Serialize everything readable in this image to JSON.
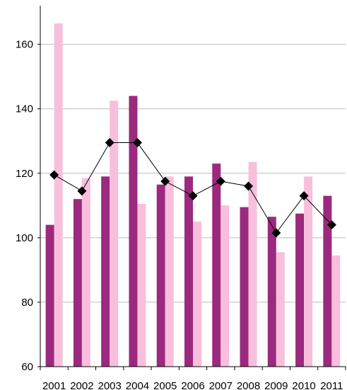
{
  "chart_data": {
    "type": "bar",
    "categories": [
      "2001",
      "2002",
      "2003",
      "2004",
      "2005",
      "2006",
      "2007",
      "2008",
      "2009",
      "2010",
      "2011"
    ],
    "series": [
      {
        "type": "bar",
        "color": "#9b2a7e",
        "values": [
          104,
          112,
          119,
          144,
          116.5,
          119,
          123,
          109.5,
          106.5,
          107.5,
          113
        ]
      },
      {
        "type": "bar",
        "color": "#f7bfdb",
        "values": [
          166.5,
          118.5,
          142.5,
          110.5,
          119,
          105,
          110,
          123.5,
          95.5,
          119,
          94.5
        ]
      },
      {
        "type": "line",
        "color": "#000000",
        "marker": "diamond",
        "values": [
          119.5,
          114.5,
          129.5,
          129.5,
          117.5,
          113,
          117.5,
          116,
          101.5,
          113,
          104
        ]
      }
    ],
    "y_ticks": [
      "60",
      "80",
      "100",
      "120",
      "140",
      "160"
    ],
    "ylim": [
      60,
      172
    ],
    "grid": true,
    "legend": "none",
    "title": "",
    "xlabel": "",
    "ylabel": ""
  }
}
